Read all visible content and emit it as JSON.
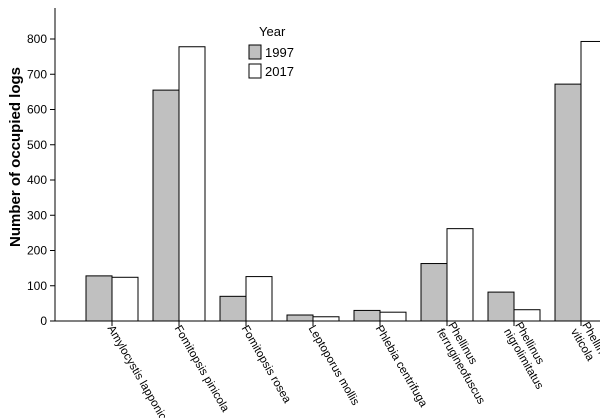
{
  "chart_data": {
    "type": "bar",
    "ylabel": "Number of occupied logs",
    "xlabel": "",
    "ylim": [
      0,
      850
    ],
    "yticks": [
      0,
      100,
      200,
      300,
      400,
      500,
      600,
      700,
      800
    ],
    "grid": false,
    "categories": [
      [
        "Amylocystis lapponica"
      ],
      [
        "Fomitopsis pinicola"
      ],
      [
        "Fomitopsis rosea"
      ],
      [
        "Leptoporus mollis"
      ],
      [
        "Phlebia centrifuga"
      ],
      [
        "Phellinus",
        "ferrugineofuscus"
      ],
      [
        "Phellinus",
        "nigrolimitatus"
      ],
      [
        "Phellinus",
        "viticola"
      ]
    ],
    "legend": {
      "title": "Year",
      "placement": "top-center"
    },
    "series": [
      {
        "name": "1997",
        "color": "#c0c0c0",
        "values": [
          128,
          655,
          70,
          17,
          30,
          163,
          82,
          672
        ]
      },
      {
        "name": "2017",
        "color": "#ffffff",
        "values": [
          124,
          778,
          126,
          12,
          25,
          262,
          32,
          793
        ]
      }
    ]
  }
}
